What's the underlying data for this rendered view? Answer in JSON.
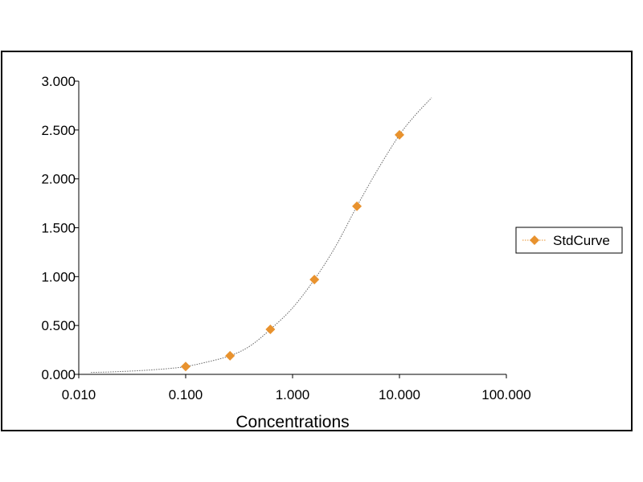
{
  "chart_data": {
    "type": "scatter",
    "xscale": "log",
    "xlabel": "Concentrations",
    "ylabel": "",
    "xlim": [
      0.01,
      100
    ],
    "ylim": [
      0,
      3
    ],
    "xticks": [
      "0.010",
      "0.100",
      "1.000",
      "10.000",
      "100.000"
    ],
    "yticks": [
      "0.000",
      "0.500",
      "1.000",
      "1.500",
      "2.000",
      "2.500",
      "3.000"
    ],
    "grid": false,
    "legend_position": "right",
    "series": [
      {
        "name": "StdCurve",
        "color": "#e8922e",
        "marker": "diamond",
        "line_style": "dotted",
        "x": [
          0.1,
          0.26,
          0.62,
          1.6,
          4.0,
          10.0
        ],
        "y": [
          0.08,
          0.19,
          0.46,
          0.97,
          1.72,
          2.45
        ]
      }
    ],
    "fit_curve": {
      "x": [
        0.013,
        0.02,
        0.04,
        0.07,
        0.1,
        0.15,
        0.26,
        0.4,
        0.62,
        1.0,
        1.6,
        2.5,
        4.0,
        6.3,
        10.0,
        14.0,
        20.0
      ],
      "y": [
        0.02,
        0.025,
        0.04,
        0.06,
        0.08,
        0.12,
        0.19,
        0.29,
        0.46,
        0.68,
        0.97,
        1.3,
        1.72,
        2.1,
        2.45,
        2.65,
        2.83
      ]
    }
  }
}
